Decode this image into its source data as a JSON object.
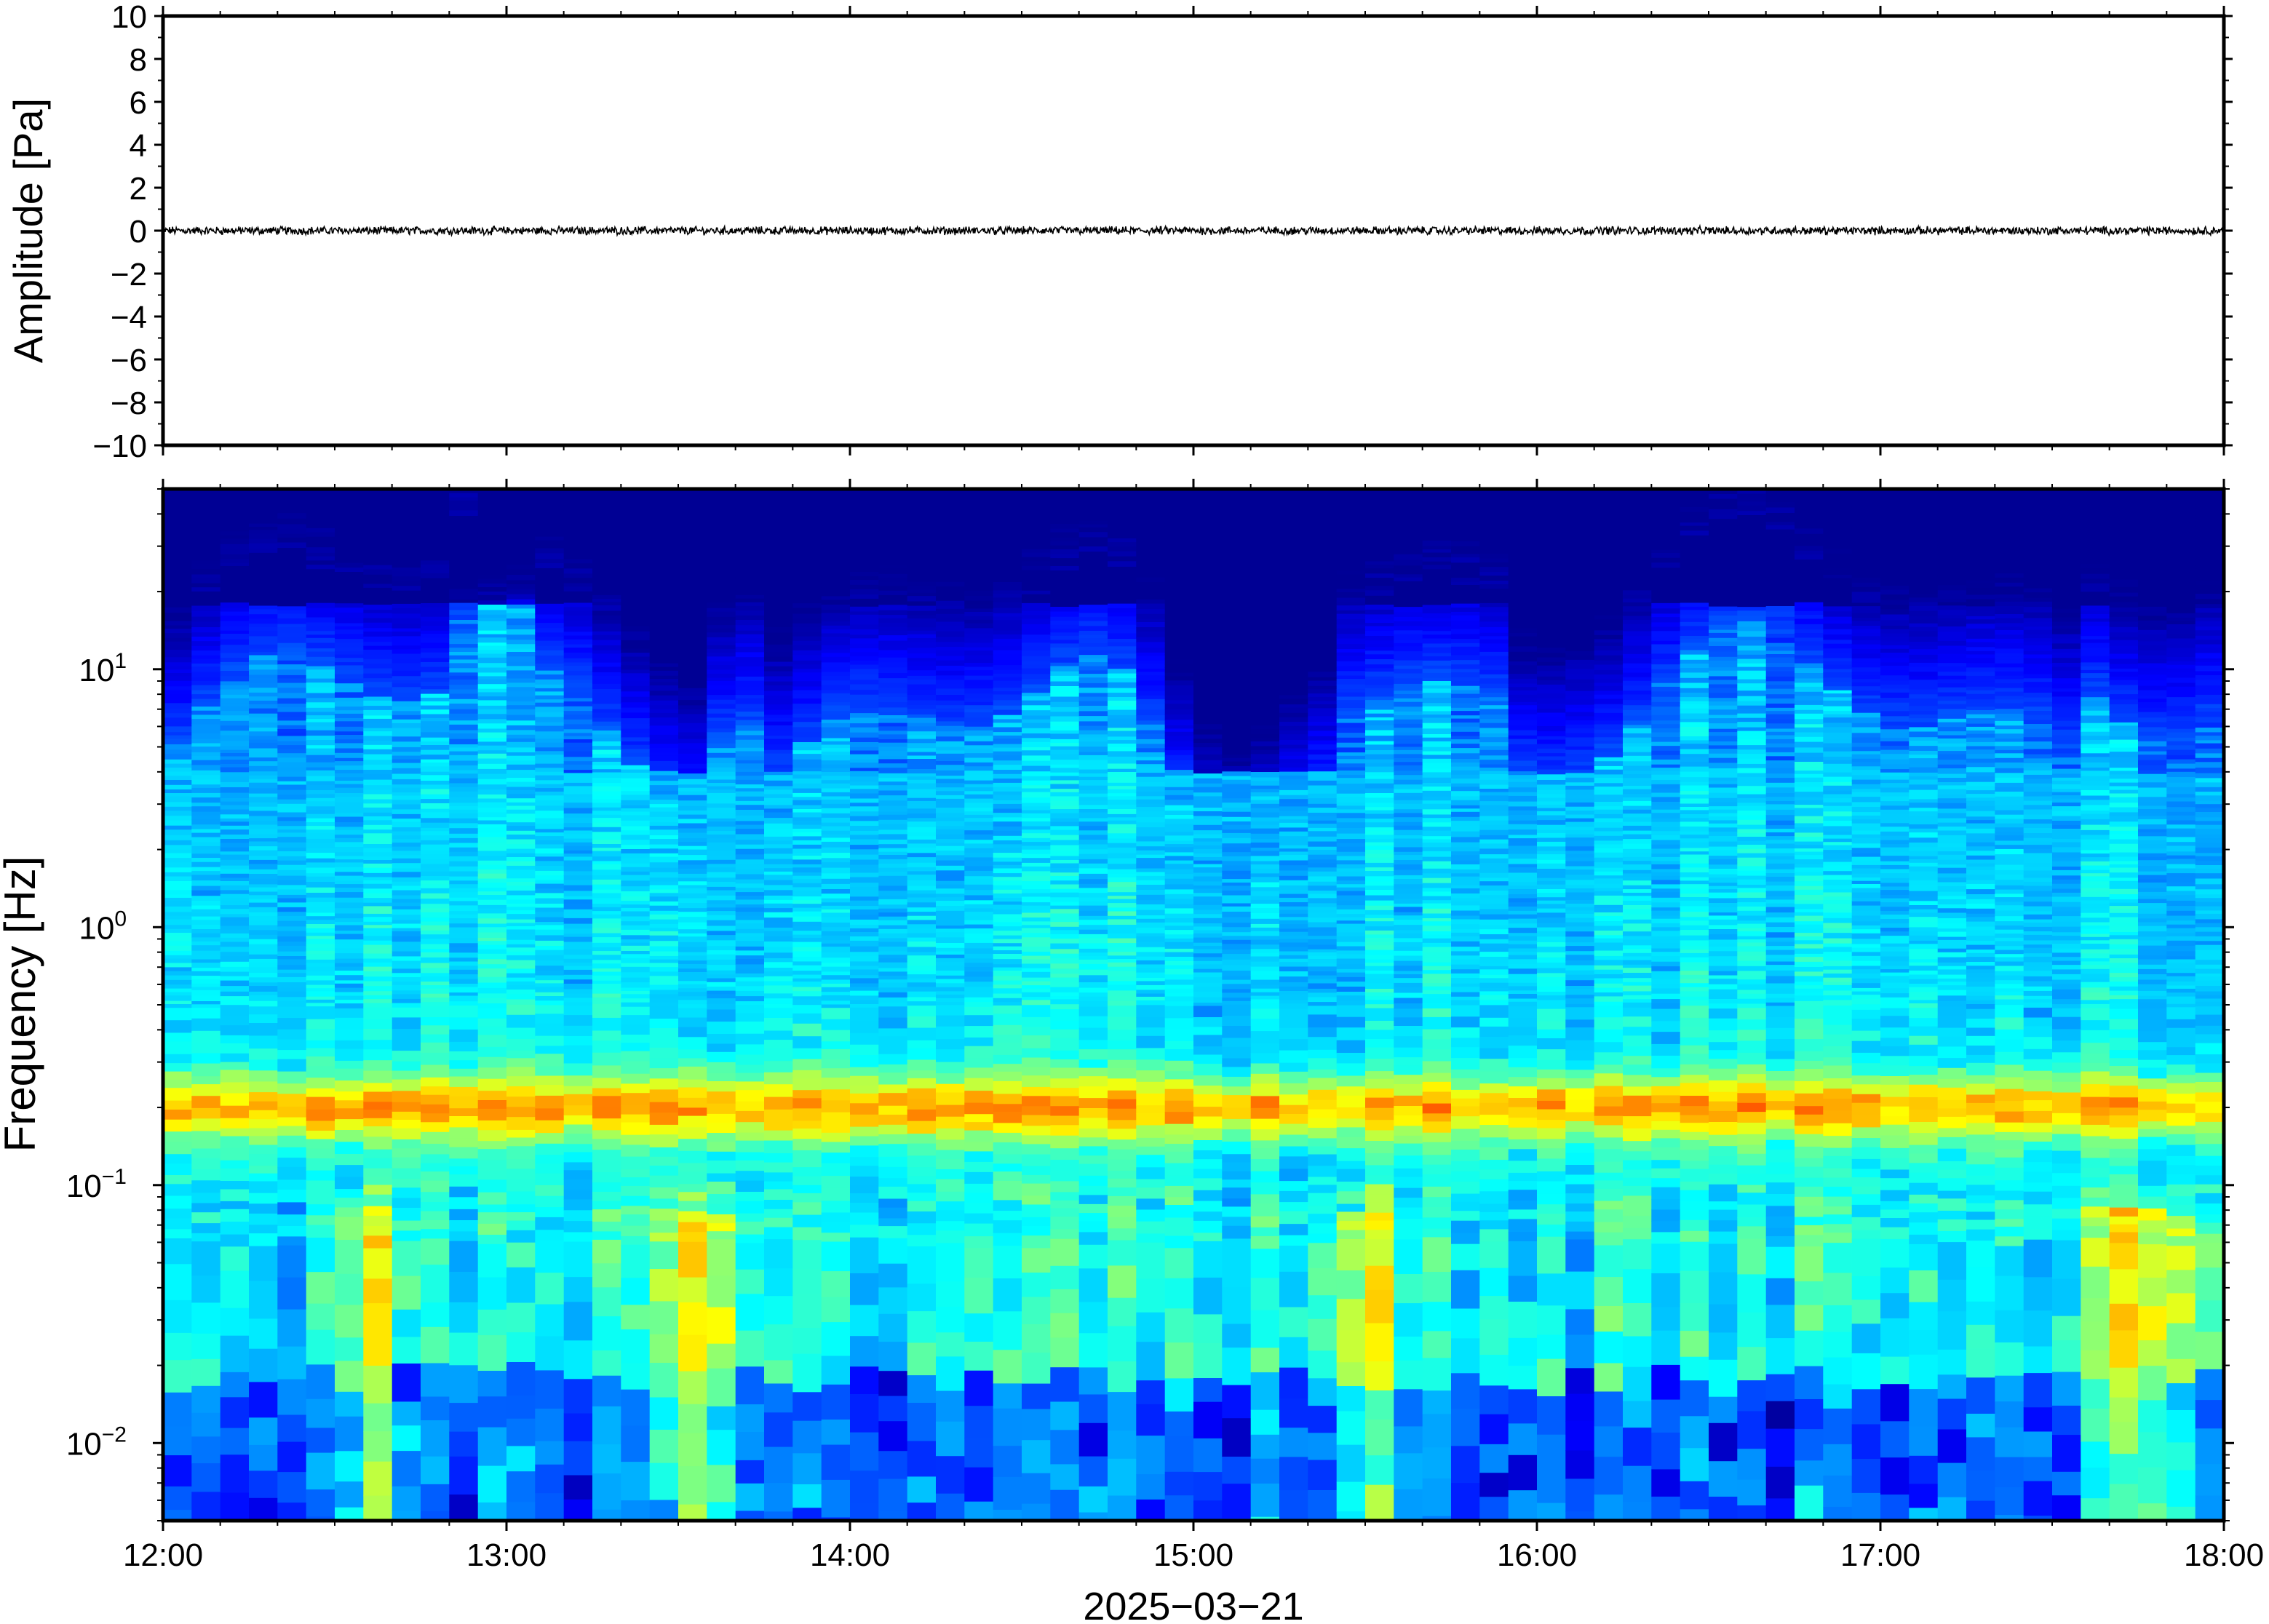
{
  "chart_data": [
    {
      "type": "line",
      "panel": "waveform",
      "ylabel": "Amplitude [Pa]",
      "ylim": [
        -10,
        10
      ],
      "yticks": [
        "10",
        "8",
        "6",
        "4",
        "2",
        "0",
        "−2",
        "−4",
        "−6",
        "−8",
        "−10"
      ],
      "xlim": [
        "12:00",
        "18:00"
      ],
      "series": [
        {
          "description_free": true,
          "values_approx": "near-zero noise trace, |amplitude| < 0.2 Pa",
          "color": "#000000"
        }
      ]
    },
    {
      "type": "heatmap",
      "panel": "spectrogram",
      "ylabel": "Frequency [Hz]",
      "yscale": "log",
      "ylim": [
        0.005,
        50
      ],
      "ytick_bases": [
        "10",
        "10",
        "10",
        "10"
      ],
      "ytick_exponents": [
        "1",
        "0",
        "−1",
        "−2"
      ],
      "xlabel": "2025−03−21",
      "xticks": [
        "12:00",
        "13:00",
        "14:00",
        "15:00",
        "16:00",
        "17:00",
        "18:00"
      ],
      "colormap": "jet",
      "features": {
        "microbarom_band_hz": 0.2,
        "quiet_period": "14:45-15:20",
        "strong_low_frequency_bursts": [
          "12:35",
          "13:35",
          "15:30",
          "17:45"
        ]
      }
    }
  ],
  "colors": {
    "axis": "#000000",
    "background": "#ffffff",
    "trace": "#000000"
  }
}
